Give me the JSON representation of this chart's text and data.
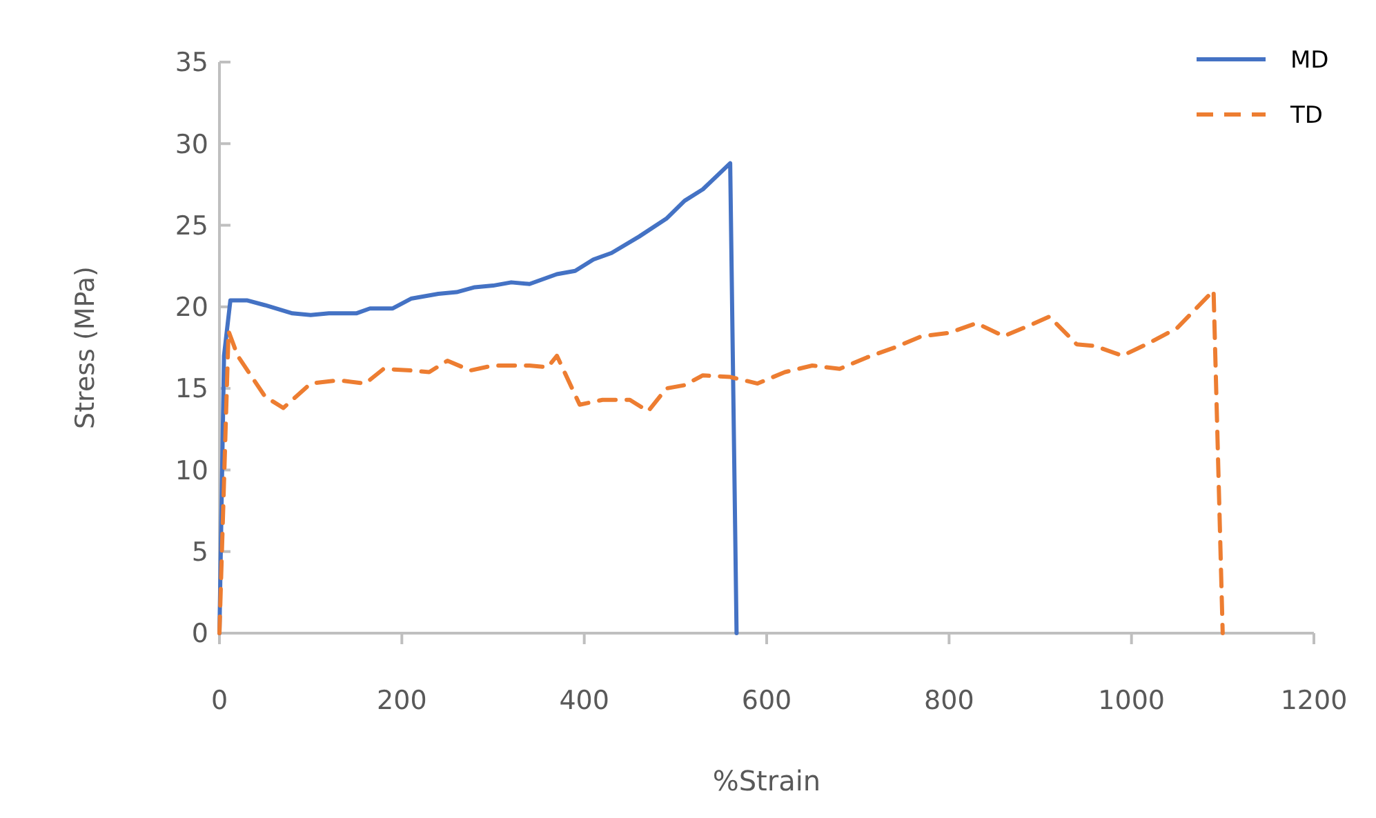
{
  "chart_data": {
    "type": "line",
    "xlabel": "%Strain",
    "ylabel": "Stress (MPa)",
    "xlim": [
      0,
      1200
    ],
    "xticks": [
      0,
      200,
      400,
      600,
      800,
      1000,
      1200
    ],
    "ylim": [
      0,
      35
    ],
    "yticks": [
      0,
      5,
      10,
      15,
      20,
      25,
      30,
      35
    ],
    "grid": false,
    "legend": "top right",
    "series": [
      {
        "name": "MD",
        "color": "#4472c4",
        "line_style": "solid",
        "x": [
          0,
          5,
          12,
          30,
          50,
          80,
          100,
          120,
          150,
          165,
          190,
          210,
          240,
          260,
          280,
          300,
          320,
          340,
          370,
          390,
          410,
          430,
          460,
          490,
          510,
          530,
          560,
          567
        ],
        "values": [
          0,
          17,
          20.4,
          20.4,
          20.1,
          19.6,
          19.5,
          19.6,
          19.6,
          19.9,
          19.9,
          20.5,
          20.8,
          20.9,
          21.2,
          21.3,
          21.5,
          21.4,
          22,
          22.2,
          22.9,
          23.3,
          24.3,
          25.4,
          26.5,
          27.2,
          28.8,
          0
        ]
      },
      {
        "name": "TD",
        "color": "#ed7d31",
        "line_style": "dashed",
        "x": [
          0,
          10,
          20,
          50,
          70,
          100,
          130,
          160,
          180,
          210,
          230,
          250,
          275,
          300,
          340,
          360,
          370,
          395,
          420,
          450,
          470,
          490,
          510,
          530,
          560,
          590,
          620,
          650,
          680,
          710,
          740,
          770,
          800,
          830,
          860,
          890,
          910,
          940,
          960,
          990,
          1020,
          1050,
          1090,
          1100
        ],
        "values": [
          0,
          18.5,
          17,
          14.5,
          13.8,
          15.3,
          15.5,
          15.3,
          16.2,
          16.1,
          16,
          16.7,
          16.1,
          16.4,
          16.4,
          16.3,
          17,
          14,
          14.3,
          14.3,
          13.6,
          15,
          15.2,
          15.8,
          15.7,
          15.3,
          16,
          16.4,
          16.2,
          16.9,
          17.5,
          18.2,
          18.4,
          19,
          18.2,
          18.9,
          19.4,
          17.7,
          17.6,
          17,
          17.8,
          18.7,
          21,
          0
        ]
      }
    ]
  }
}
